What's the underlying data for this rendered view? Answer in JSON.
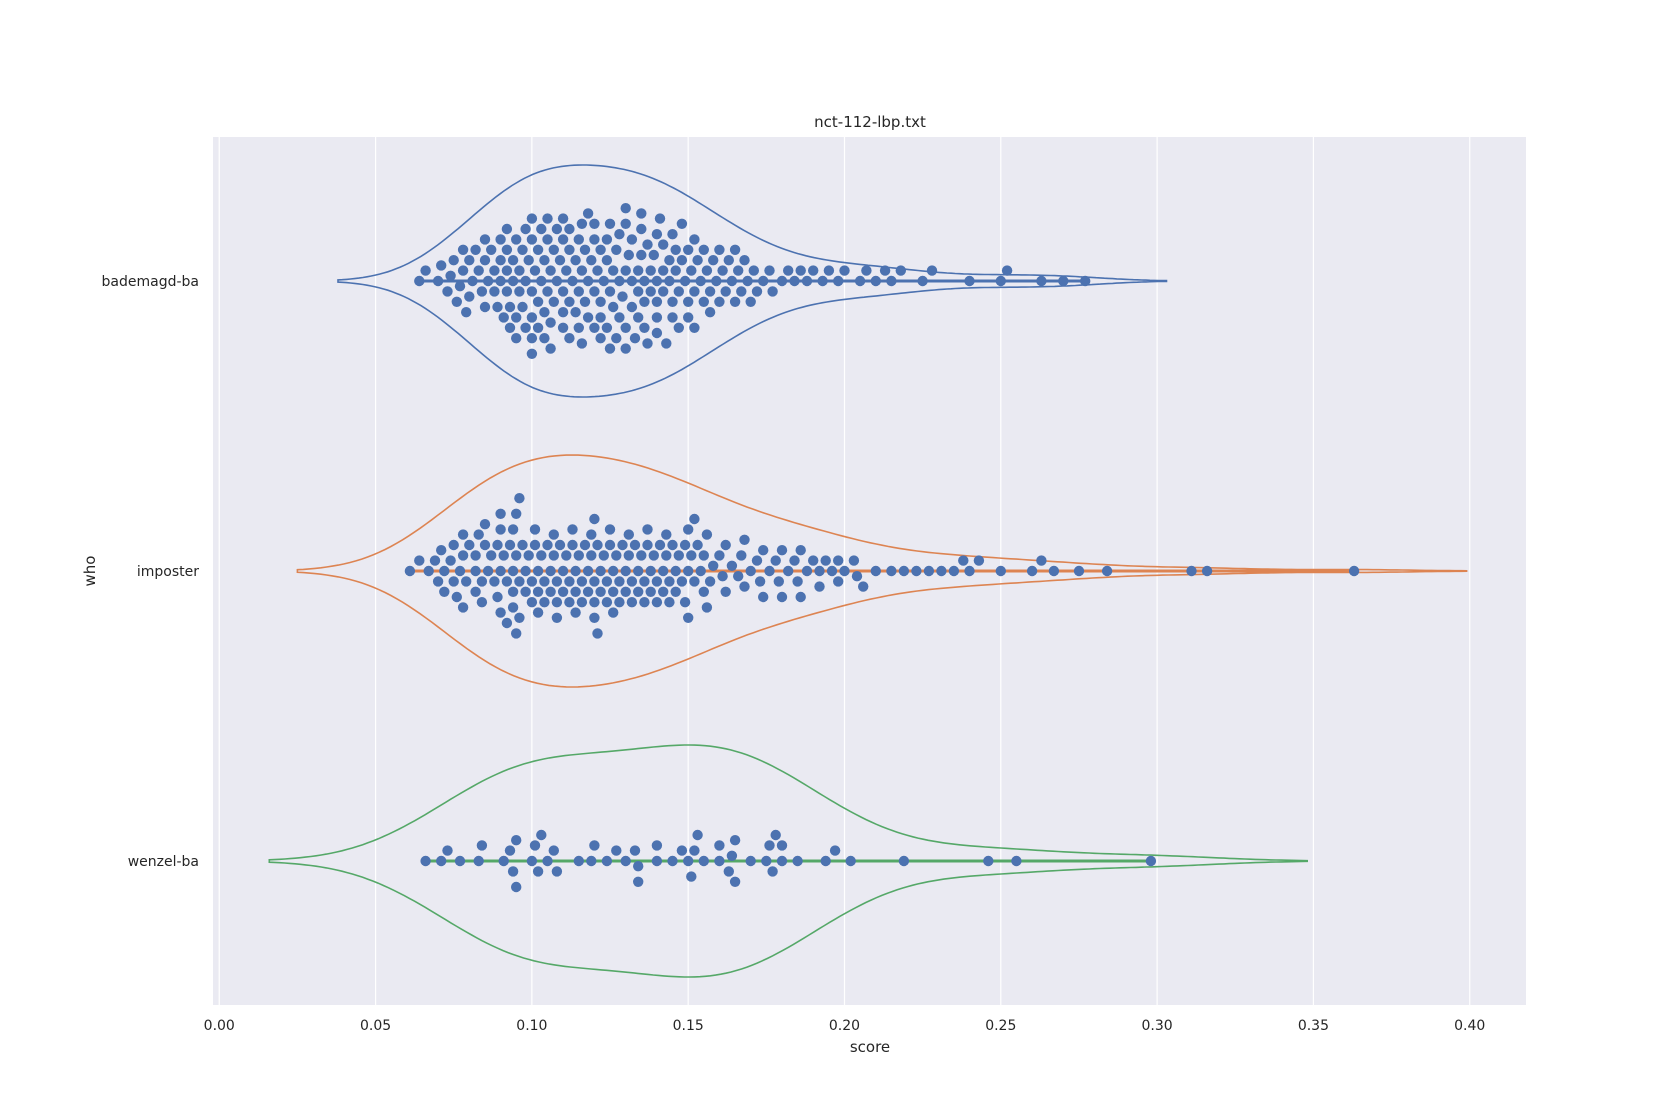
{
  "chart_data": {
    "type": "violin",
    "title": "nct-112-lbp.txt",
    "xlabel": "score",
    "ylabel": "who",
    "xlim": [
      -0.002,
      0.418
    ],
    "xticks": [
      0.0,
      0.05,
      0.1,
      0.15,
      0.2,
      0.25,
      0.3,
      0.35,
      0.4
    ],
    "xtick_labels": [
      "0.00",
      "0.05",
      "0.10",
      "0.15",
      "0.20",
      "0.25",
      "0.30",
      "0.35",
      "0.40"
    ],
    "grid": true,
    "orientation": "horizontal",
    "categories": [
      "bademagd-ba",
      "imposter",
      "wenzel-ba"
    ],
    "series": [
      {
        "name": "bademagd-ba",
        "color": "#4c72b0",
        "extent": [
          0.038,
          0.303
        ],
        "values": [
          0.064,
          0.066,
          0.07,
          0.071,
          0.073,
          0.074,
          0.075,
          0.076,
          0.077,
          0.078,
          0.078,
          0.079,
          0.08,
          0.081,
          0.082,
          0.083,
          0.084,
          0.085,
          0.086,
          0.087,
          0.088,
          0.088,
          0.089,
          0.09,
          0.091,
          0.092,
          0.092,
          0.093,
          0.093,
          0.094,
          0.095,
          0.096,
          0.097,
          0.098,
          0.099,
          0.1,
          0.1,
          0.101,
          0.102,
          0.103,
          0.103,
          0.104,
          0.105,
          0.106,
          0.107,
          0.108,
          0.109,
          0.11,
          0.111,
          0.112,
          0.113,
          0.114,
          0.115,
          0.116,
          0.117,
          0.118,
          0.119,
          0.12,
          0.121,
          0.122,
          0.123,
          0.124,
          0.125,
          0.126,
          0.127,
          0.128,
          0.129,
          0.13,
          0.131,
          0.132,
          0.133,
          0.134,
          0.135,
          0.136,
          0.137,
          0.138,
          0.139,
          0.14,
          0.141,
          0.142,
          0.143,
          0.144,
          0.145,
          0.146,
          0.147,
          0.148,
          0.149,
          0.15,
          0.151,
          0.152,
          0.153,
          0.154,
          0.155,
          0.156,
          0.157,
          0.158,
          0.159,
          0.16,
          0.161,
          0.162,
          0.163,
          0.164,
          0.165,
          0.166,
          0.167,
          0.168,
          0.169,
          0.17,
          0.171,
          0.172,
          0.174,
          0.176,
          0.177,
          0.18,
          0.182,
          0.184,
          0.186,
          0.188,
          0.19,
          0.193,
          0.195,
          0.198,
          0.2,
          0.205,
          0.207,
          0.21,
          0.213,
          0.215,
          0.218,
          0.225,
          0.228,
          0.24,
          0.25,
          0.252,
          0.263,
          0.27,
          0.277,
          0.08,
          0.085,
          0.09,
          0.095,
          0.1,
          0.105,
          0.11,
          0.115,
          0.12,
          0.125,
          0.13,
          0.135,
          0.14,
          0.145,
          0.15,
          0.155,
          0.16,
          0.165,
          0.085,
          0.092,
          0.097,
          0.102,
          0.107,
          0.112,
          0.117,
          0.122,
          0.127,
          0.132,
          0.137,
          0.142,
          0.147,
          0.152,
          0.157,
          0.09,
          0.095,
          0.1,
          0.105,
          0.11,
          0.115,
          0.12,
          0.125,
          0.13,
          0.135,
          0.14,
          0.145,
          0.15,
          0.092,
          0.098,
          0.104,
          0.11,
          0.116,
          0.122,
          0.128,
          0.134,
          0.14,
          0.146,
          0.152,
          0.094,
          0.1,
          0.106,
          0.112,
          0.118,
          0.124,
          0.13,
          0.136,
          0.142,
          0.148,
          0.096,
          0.102,
          0.108,
          0.114,
          0.12,
          0.126,
          0.132,
          0.138,
          0.144,
          0.098,
          0.104,
          0.11,
          0.116,
          0.122,
          0.128,
          0.134,
          0.14,
          0.1,
          0.106,
          0.112,
          0.118,
          0.124,
          0.13,
          0.136
        ]
      },
      {
        "name": "imposter",
        "color": "#dd8452",
        "extent": [
          0.025,
          0.399
        ],
        "values": [
          0.061,
          0.064,
          0.067,
          0.069,
          0.07,
          0.071,
          0.072,
          0.074,
          0.075,
          0.076,
          0.077,
          0.078,
          0.079,
          0.08,
          0.082,
          0.083,
          0.084,
          0.085,
          0.086,
          0.087,
          0.088,
          0.089,
          0.09,
          0.091,
          0.092,
          0.093,
          0.094,
          0.095,
          0.096,
          0.097,
          0.098,
          0.099,
          0.1,
          0.101,
          0.102,
          0.103,
          0.104,
          0.105,
          0.106,
          0.107,
          0.108,
          0.109,
          0.11,
          0.111,
          0.112,
          0.113,
          0.114,
          0.115,
          0.116,
          0.117,
          0.118,
          0.119,
          0.12,
          0.121,
          0.122,
          0.123,
          0.124,
          0.125,
          0.126,
          0.127,
          0.128,
          0.129,
          0.13,
          0.131,
          0.132,
          0.133,
          0.134,
          0.135,
          0.136,
          0.137,
          0.138,
          0.139,
          0.14,
          0.141,
          0.142,
          0.143,
          0.144,
          0.145,
          0.146,
          0.147,
          0.148,
          0.149,
          0.15,
          0.151,
          0.152,
          0.153,
          0.154,
          0.155,
          0.156,
          0.157,
          0.158,
          0.16,
          0.162,
          0.164,
          0.166,
          0.168,
          0.17,
          0.172,
          0.174,
          0.176,
          0.178,
          0.18,
          0.182,
          0.184,
          0.186,
          0.188,
          0.19,
          0.192,
          0.194,
          0.196,
          0.198,
          0.2,
          0.203,
          0.206,
          0.21,
          0.215,
          0.219,
          0.223,
          0.227,
          0.231,
          0.235,
          0.238,
          0.24,
          0.243,
          0.25,
          0.26,
          0.263,
          0.267,
          0.275,
          0.284,
          0.311,
          0.316,
          0.363,
          0.072,
          0.078,
          0.084,
          0.09,
          0.096,
          0.102,
          0.108,
          0.114,
          0.12,
          0.126,
          0.132,
          0.138,
          0.144,
          0.15,
          0.156,
          0.162,
          0.168,
          0.174,
          0.18,
          0.186,
          0.192,
          0.198,
          0.204,
          0.075,
          0.082,
          0.089,
          0.095,
          0.101,
          0.107,
          0.113,
          0.119,
          0.125,
          0.131,
          0.137,
          0.143,
          0.149,
          0.155,
          0.161,
          0.167,
          0.173,
          0.179,
          0.185,
          0.078,
          0.085,
          0.092,
          0.098,
          0.104,
          0.11,
          0.116,
          0.122,
          0.128,
          0.134,
          0.14,
          0.146,
          0.152,
          0.082,
          0.09,
          0.094,
          0.1,
          0.106,
          0.112,
          0.118,
          0.124,
          0.13,
          0.136,
          0.142,
          0.15,
          0.09,
          0.094,
          0.096,
          0.102,
          0.108,
          0.114,
          0.12,
          0.126,
          0.094,
          0.095,
          0.12,
          0.121
        ]
      },
      {
        "name": "wenzel-ba",
        "color": "#55a868",
        "extent": [
          0.016,
          0.348
        ],
        "values": [
          0.066,
          0.071,
          0.073,
          0.077,
          0.083,
          0.084,
          0.091,
          0.093,
          0.094,
          0.095,
          0.095,
          0.1,
          0.101,
          0.102,
          0.103,
          0.105,
          0.107,
          0.108,
          0.115,
          0.119,
          0.12,
          0.124,
          0.127,
          0.13,
          0.133,
          0.134,
          0.134,
          0.14,
          0.148,
          0.15,
          0.151,
          0.152,
          0.153,
          0.16,
          0.163,
          0.164,
          0.165,
          0.176,
          0.177,
          0.178,
          0.18,
          0.18,
          0.185,
          0.194,
          0.197,
          0.202,
          0.219,
          0.246,
          0.255,
          0.298,
          0.14,
          0.145,
          0.155,
          0.16,
          0.165,
          0.17,
          0.175
        ]
      }
    ]
  }
}
